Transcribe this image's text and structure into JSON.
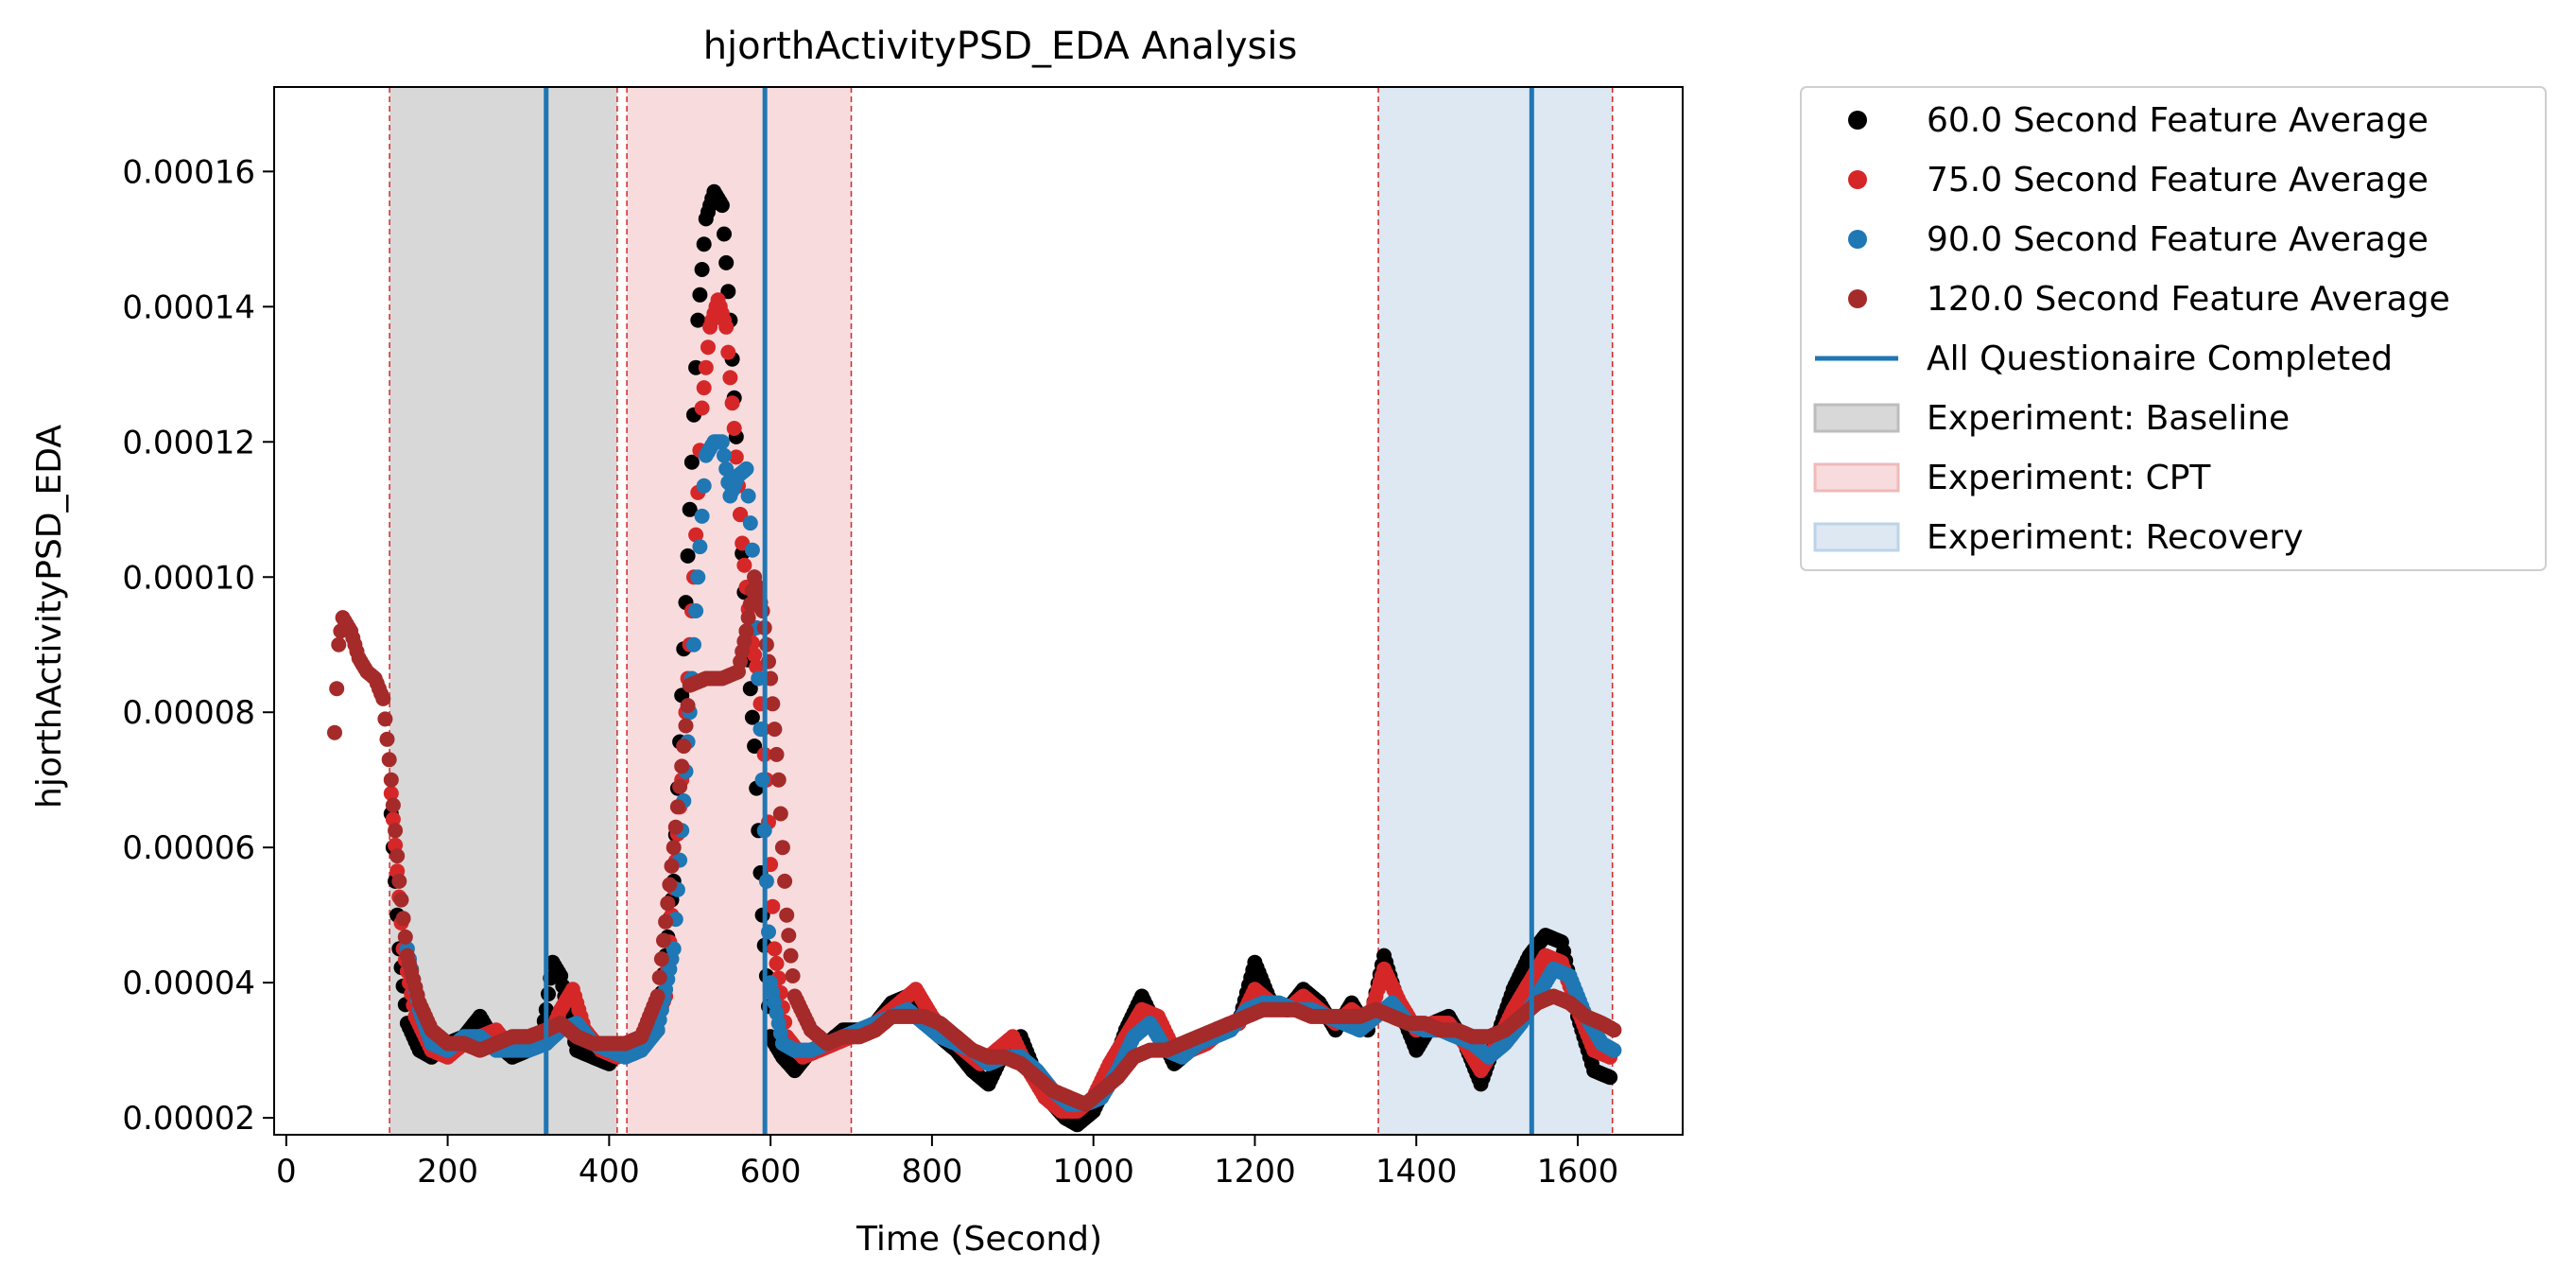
{
  "chart_data": {
    "type": "scatter",
    "title": "hjorthActivityPSD_EDA Analysis",
    "xlabel": "Time (Second)",
    "ylabel": "hjorthActivityPSD_EDA",
    "xlim": [
      -15,
      1730
    ],
    "ylim": [
      1.75e-05,
      0.0001725
    ],
    "grid": false,
    "legend_position": "outside-top-right",
    "xticks": [
      0,
      200,
      400,
      600,
      800,
      1000,
      1200,
      1400,
      1600
    ],
    "xtick_labels": [
      "0",
      "200",
      "400",
      "600",
      "800",
      "1000",
      "1200",
      "1400",
      "1600"
    ],
    "yticks": [
      2e-05,
      4e-05,
      6e-05,
      8e-05,
      0.0001,
      0.00012,
      0.00014,
      0.00016
    ],
    "ytick_labels": [
      "0.00002",
      "0.00004",
      "0.00006",
      "0.00008",
      "0.00010",
      "0.00012",
      "0.00014",
      "0.00016"
    ],
    "regions": [
      {
        "name": "Experiment: Baseline",
        "start": 128,
        "end": 410,
        "color": "#d8d8d8"
      },
      {
        "name": "Experiment: CPT",
        "start": 422,
        "end": 700,
        "color": "#f8dcdd"
      },
      {
        "name": "Experiment: Recovery",
        "start": 1353,
        "end": 1643,
        "color": "#dde8f2"
      }
    ],
    "vlines": {
      "name": "All Questionaire Completed",
      "x": [
        322,
        593,
        1543
      ],
      "color": "#1f77b4"
    },
    "series": [
      {
        "name": "60.0 Second Feature Average",
        "color": "#000000",
        "x": [
          130,
          140,
          150,
          165,
          180,
          200,
          220,
          240,
          260,
          280,
          300,
          315,
          322,
          330,
          340,
          350,
          360,
          380,
          400,
          410,
          420,
          440,
          460,
          480,
          500,
          510,
          520,
          530,
          540,
          550,
          560,
          570,
          580,
          590,
          600,
          615,
          630,
          650,
          670,
          690,
          710,
          730,
          750,
          770,
          790,
          810,
          830,
          850,
          870,
          890,
          910,
          930,
          950,
          965,
          980,
          1000,
          1020,
          1040,
          1060,
          1080,
          1100,
          1120,
          1140,
          1160,
          1180,
          1200,
          1220,
          1240,
          1260,
          1280,
          1300,
          1320,
          1340,
          1360,
          1380,
          1400,
          1420,
          1440,
          1460,
          1480,
          1500,
          1520,
          1540,
          1560,
          1580,
          1600,
          1620,
          1640
        ],
        "y": [
          6.5e-05,
          4.5e-05,
          3.4e-05,
          3e-05,
          2.9e-05,
          3.1e-05,
          3.2e-05,
          3.5e-05,
          3.1e-05,
          2.9e-05,
          3e-05,
          3.1e-05,
          3.6e-05,
          4.3e-05,
          4.1e-05,
          3.5e-05,
          3e-05,
          2.9e-05,
          2.8e-05,
          3e-05,
          3e-05,
          3.1e-05,
          3.3e-05,
          5.5e-05,
          0.00011,
          0.000138,
          0.000153,
          0.000157,
          0.000155,
          0.000138,
          0.000115,
          9.2e-05,
          7.5e-05,
          5e-05,
          3.2e-05,
          2.9e-05,
          2.7e-05,
          3e-05,
          3.1e-05,
          3.3e-05,
          3.3e-05,
          3.4e-05,
          3.7e-05,
          3.8e-05,
          3.6e-05,
          3.2e-05,
          3e-05,
          2.7e-05,
          2.5e-05,
          3e-05,
          3.2e-05,
          2.6e-05,
          2.2e-05,
          2e-05,
          1.9e-05,
          2.1e-05,
          2.6e-05,
          3.3e-05,
          3.8e-05,
          3.3e-05,
          2.8e-05,
          3e-05,
          3.1e-05,
          3.3e-05,
          3.4e-05,
          4.3e-05,
          3.7e-05,
          3.6e-05,
          3.9e-05,
          3.7e-05,
          3.3e-05,
          3.7e-05,
          3.3e-05,
          4.4e-05,
          3.6e-05,
          3e-05,
          3.4e-05,
          3.5e-05,
          3.1e-05,
          2.5e-05,
          3.2e-05,
          3.9e-05,
          4.4e-05,
          4.7e-05,
          4.6e-05,
          3.5e-05,
          2.7e-05,
          2.6e-05
        ]
      },
      {
        "name": "75.0 Second Feature Average",
        "color": "#d62728",
        "x": [
          130,
          145,
          160,
          180,
          200,
          220,
          240,
          260,
          280,
          300,
          322,
          340,
          355,
          370,
          390,
          410,
          430,
          450,
          470,
          490,
          505,
          515,
          525,
          535,
          545,
          555,
          565,
          575,
          585,
          595,
          605,
          620,
          640,
          660,
          680,
          700,
          720,
          740,
          760,
          780,
          800,
          820,
          840,
          860,
          880,
          900,
          920,
          940,
          960,
          980,
          1000,
          1020,
          1040,
          1060,
          1080,
          1100,
          1120,
          1140,
          1160,
          1180,
          1200,
          1220,
          1240,
          1260,
          1280,
          1300,
          1320,
          1340,
          1360,
          1380,
          1400,
          1420,
          1440,
          1460,
          1480,
          1500,
          1520,
          1540,
          1560,
          1580,
          1600,
          1620,
          1640
        ],
        "y": [
          6.8e-05,
          4.5e-05,
          3.5e-05,
          3e-05,
          2.9e-05,
          3.1e-05,
          3.2e-05,
          3.3e-05,
          3e-05,
          3.1e-05,
          3.1e-05,
          3.6e-05,
          3.9e-05,
          3.3e-05,
          3e-05,
          2.9e-05,
          3e-05,
          3.2e-05,
          3.8e-05,
          7e-05,
          0.0001,
          0.000125,
          0.000137,
          0.000141,
          0.000137,
          0.000122,
          0.000105,
          9.2e-05,
          8.5e-05,
          7e-05,
          4.5e-05,
          3.2e-05,
          2.9e-05,
          3e-05,
          3.1e-05,
          3.2e-05,
          3.3e-05,
          3.5e-05,
          3.7e-05,
          3.9e-05,
          3.5e-05,
          3.2e-05,
          3e-05,
          2.8e-05,
          3e-05,
          3.2e-05,
          2.7e-05,
          2.3e-05,
          2.1e-05,
          2.1e-05,
          2.3e-05,
          2.8e-05,
          3.2e-05,
          3.6e-05,
          3.5e-05,
          3e-05,
          3e-05,
          3.1e-05,
          3.3e-05,
          3.4e-05,
          3.9e-05,
          3.7e-05,
          3.6e-05,
          3.8e-05,
          3.6e-05,
          3.4e-05,
          3.6e-05,
          3.4e-05,
          4.2e-05,
          3.7e-05,
          3.3e-05,
          3.4e-05,
          3.4e-05,
          3.1e-05,
          2.7e-05,
          3.1e-05,
          3.6e-05,
          4e-05,
          4.4e-05,
          4.3e-05,
          3.6e-05,
          3e-05,
          2.9e-05
        ]
      },
      {
        "name": "90.0 Second Feature Average",
        "color": "#1f77b4",
        "x": [
          150,
          165,
          180,
          200,
          220,
          240,
          260,
          280,
          300,
          322,
          340,
          360,
          380,
          400,
          420,
          440,
          460,
          480,
          500,
          510,
          520,
          530,
          540,
          550,
          560,
          570,
          580,
          590,
          600,
          615,
          630,
          650,
          670,
          690,
          710,
          730,
          750,
          770,
          790,
          810,
          830,
          850,
          870,
          890,
          910,
          930,
          950,
          970,
          990,
          1010,
          1030,
          1050,
          1070,
          1090,
          1110,
          1130,
          1150,
          1170,
          1190,
          1210,
          1230,
          1250,
          1270,
          1290,
          1310,
          1330,
          1350,
          1370,
          1390,
          1410,
          1430,
          1450,
          1470,
          1490,
          1510,
          1530,
          1550,
          1570,
          1590,
          1610,
          1630,
          1645
        ],
        "y": [
          4.5e-05,
          3.6e-05,
          3.1e-05,
          3e-05,
          3.2e-05,
          3.2e-05,
          3e-05,
          3e-05,
          3e-05,
          3.1e-05,
          3.3e-05,
          3.4e-05,
          3.1e-05,
          3e-05,
          2.9e-05,
          3e-05,
          3.3e-05,
          4.5e-05,
          8e-05,
          0.0001,
          0.000118,
          0.00012,
          0.00012,
          0.000112,
          0.000115,
          0.000116,
          0.0001,
          7e-05,
          4e-05,
          3.1e-05,
          3e-05,
          3e-05,
          3.1e-05,
          3.2e-05,
          3.3e-05,
          3.4e-05,
          3.5e-05,
          3.6e-05,
          3.4e-05,
          3.2e-05,
          3.1e-05,
          3e-05,
          2.8e-05,
          2.9e-05,
          2.9e-05,
          2.7e-05,
          2.4e-05,
          2.2e-05,
          2.2e-05,
          2.3e-05,
          2.7e-05,
          3.2e-05,
          3.4e-05,
          3e-05,
          2.9e-05,
          3.1e-05,
          3.2e-05,
          3.3e-05,
          3.6e-05,
          3.7e-05,
          3.7e-05,
          3.6e-05,
          3.6e-05,
          3.5e-05,
          3.4e-05,
          3.3e-05,
          3.5e-05,
          3.7e-05,
          3.4e-05,
          3.3e-05,
          3.3e-05,
          3.2e-05,
          3.1e-05,
          2.9e-05,
          3.1e-05,
          3.4e-05,
          3.8e-05,
          4.2e-05,
          4.1e-05,
          3.5e-05,
          3.1e-05,
          3e-05
        ]
      },
      {
        "name": "120.0 Second Feature Average",
        "color": "#a52a2a",
        "x": [
          60,
          65,
          70,
          80,
          90,
          100,
          110,
          120,
          130,
          140,
          150,
          165,
          180,
          200,
          220,
          240,
          260,
          280,
          300,
          322,
          340,
          360,
          380,
          400,
          420,
          440,
          460,
          480,
          500,
          520,
          540,
          560,
          570,
          580,
          590,
          600,
          610,
          620,
          630,
          650,
          670,
          690,
          710,
          730,
          750,
          770,
          790,
          810,
          830,
          850,
          870,
          890,
          910,
          930,
          950,
          970,
          990,
          1010,
          1030,
          1050,
          1070,
          1090,
          1110,
          1130,
          1150,
          1170,
          1190,
          1210,
          1230,
          1250,
          1270,
          1290,
          1310,
          1330,
          1350,
          1370,
          1390,
          1410,
          1430,
          1450,
          1470,
          1490,
          1510,
          1530,
          1550,
          1570,
          1590,
          1610,
          1630,
          1645
        ],
        "y": [
          7.7e-05,
          9e-05,
          9.4e-05,
          9.2e-05,
          8.8e-05,
          8.6e-05,
          8.5e-05,
          8.2e-05,
          7e-05,
          5.5e-05,
          4.4e-05,
          3.7e-05,
          3.3e-05,
          3.1e-05,
          3.1e-05,
          3e-05,
          3.1e-05,
          3.2e-05,
          3.2e-05,
          3.3e-05,
          3.4e-05,
          3.2e-05,
          3.1e-05,
          3.1e-05,
          3.1e-05,
          3.2e-05,
          3.8e-05,
          6e-05,
          8.4e-05,
          8.5e-05,
          8.5e-05,
          8.6e-05,
          9.2e-05,
          0.0001,
          9.5e-05,
          8.5e-05,
          7e-05,
          5e-05,
          3.8e-05,
          3.3e-05,
          3.1e-05,
          3.2e-05,
          3.2e-05,
          3.3e-05,
          3.5e-05,
          3.5e-05,
          3.5e-05,
          3.4e-05,
          3.2e-05,
          3e-05,
          2.9e-05,
          2.9e-05,
          2.8e-05,
          2.6e-05,
          2.4e-05,
          2.3e-05,
          2.2e-05,
          2.4e-05,
          2.6e-05,
          2.9e-05,
          3e-05,
          3e-05,
          3.1e-05,
          3.2e-05,
          3.3e-05,
          3.4e-05,
          3.5e-05,
          3.6e-05,
          3.6e-05,
          3.6e-05,
          3.5e-05,
          3.5e-05,
          3.5e-05,
          3.5e-05,
          3.6e-05,
          3.5e-05,
          3.4e-05,
          3.4e-05,
          3.3e-05,
          3.3e-05,
          3.2e-05,
          3.2e-05,
          3.3e-05,
          3.5e-05,
          3.7e-05,
          3.8e-05,
          3.7e-05,
          3.5e-05,
          3.4e-05,
          3.3e-05
        ]
      }
    ]
  },
  "legend": {
    "items": [
      {
        "label": "60.0 Second Feature Average",
        "kind": "marker",
        "color": "#000000"
      },
      {
        "label": "75.0 Second Feature Average",
        "kind": "marker",
        "color": "#d62728"
      },
      {
        "label": "90.0 Second Feature Average",
        "kind": "marker",
        "color": "#1f77b4"
      },
      {
        "label": "120.0 Second Feature Average",
        "kind": "marker",
        "color": "#a52a2a"
      },
      {
        "label": "All Questionaire Completed",
        "kind": "line",
        "color": "#1f77b4"
      },
      {
        "label": "Experiment: Baseline",
        "kind": "patch",
        "color": "#d8d8d8",
        "edge": "#bdbdbd"
      },
      {
        "label": "Experiment: CPT",
        "kind": "patch",
        "color": "#f8dcdd",
        "edge": "#f0b9bb"
      },
      {
        "label": "Experiment: Recovery",
        "kind": "patch",
        "color": "#dde8f2",
        "edge": "#bcd4e8"
      }
    ]
  }
}
